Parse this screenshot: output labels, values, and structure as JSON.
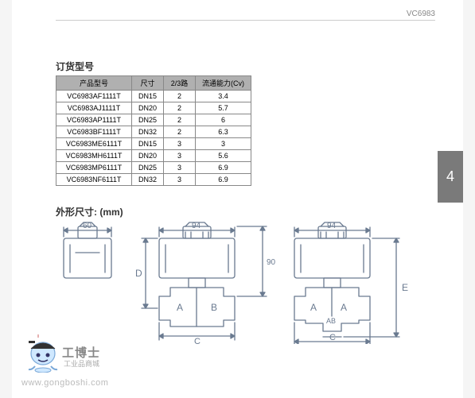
{
  "header": {
    "code": "VC6983"
  },
  "side_tab": {
    "number": "4"
  },
  "sections": {
    "order_title": "订货型号",
    "dim_title": "外形尺寸: (mm)"
  },
  "table": {
    "columns": [
      "产品型号",
      "尺寸",
      "2/3路",
      "流通能力(Cv)"
    ],
    "rows": [
      [
        "VC6983AF1111T",
        "DN15",
        "2",
        "3.4"
      ],
      [
        "VC6983AJ1111T",
        "DN20",
        "2",
        "5.7"
      ],
      [
        "VC6983AP1111T",
        "DN25",
        "2",
        "6"
      ],
      [
        "VC6983BF1111T",
        "DN32",
        "2",
        "6.3"
      ],
      [
        "VC6983ME6111T",
        "DN15",
        "3",
        "3"
      ],
      [
        "VC6983MH6111T",
        "DN20",
        "3",
        "5.6"
      ],
      [
        "VC6983MP6111T",
        "DN25",
        "3",
        "6.9"
      ],
      [
        "VC6983NF6111T",
        "DN32",
        "3",
        "6.9"
      ]
    ],
    "header_bg": "#b0b0b0",
    "border_color": "#888888"
  },
  "diagram": {
    "dims": {
      "top_w1": "60",
      "top_w2a": "94",
      "top_w2b": "94",
      "mid_h": "90"
    },
    "labels": {
      "D": "D",
      "A1": "A",
      "B1": "B",
      "A2": "A",
      "AB": "AB",
      "C1": "C",
      "C2": "C",
      "E": "E"
    },
    "stroke": "#6a7a90",
    "stroke_width": 1.3
  },
  "logo": {
    "name": "工博士",
    "sub": "工业品商城",
    "url": "www.gongboshi.com",
    "mascot_face": "#cfe8ff",
    "mascot_stroke": "#7aa8d8",
    "mascot_hat": "#333333"
  }
}
